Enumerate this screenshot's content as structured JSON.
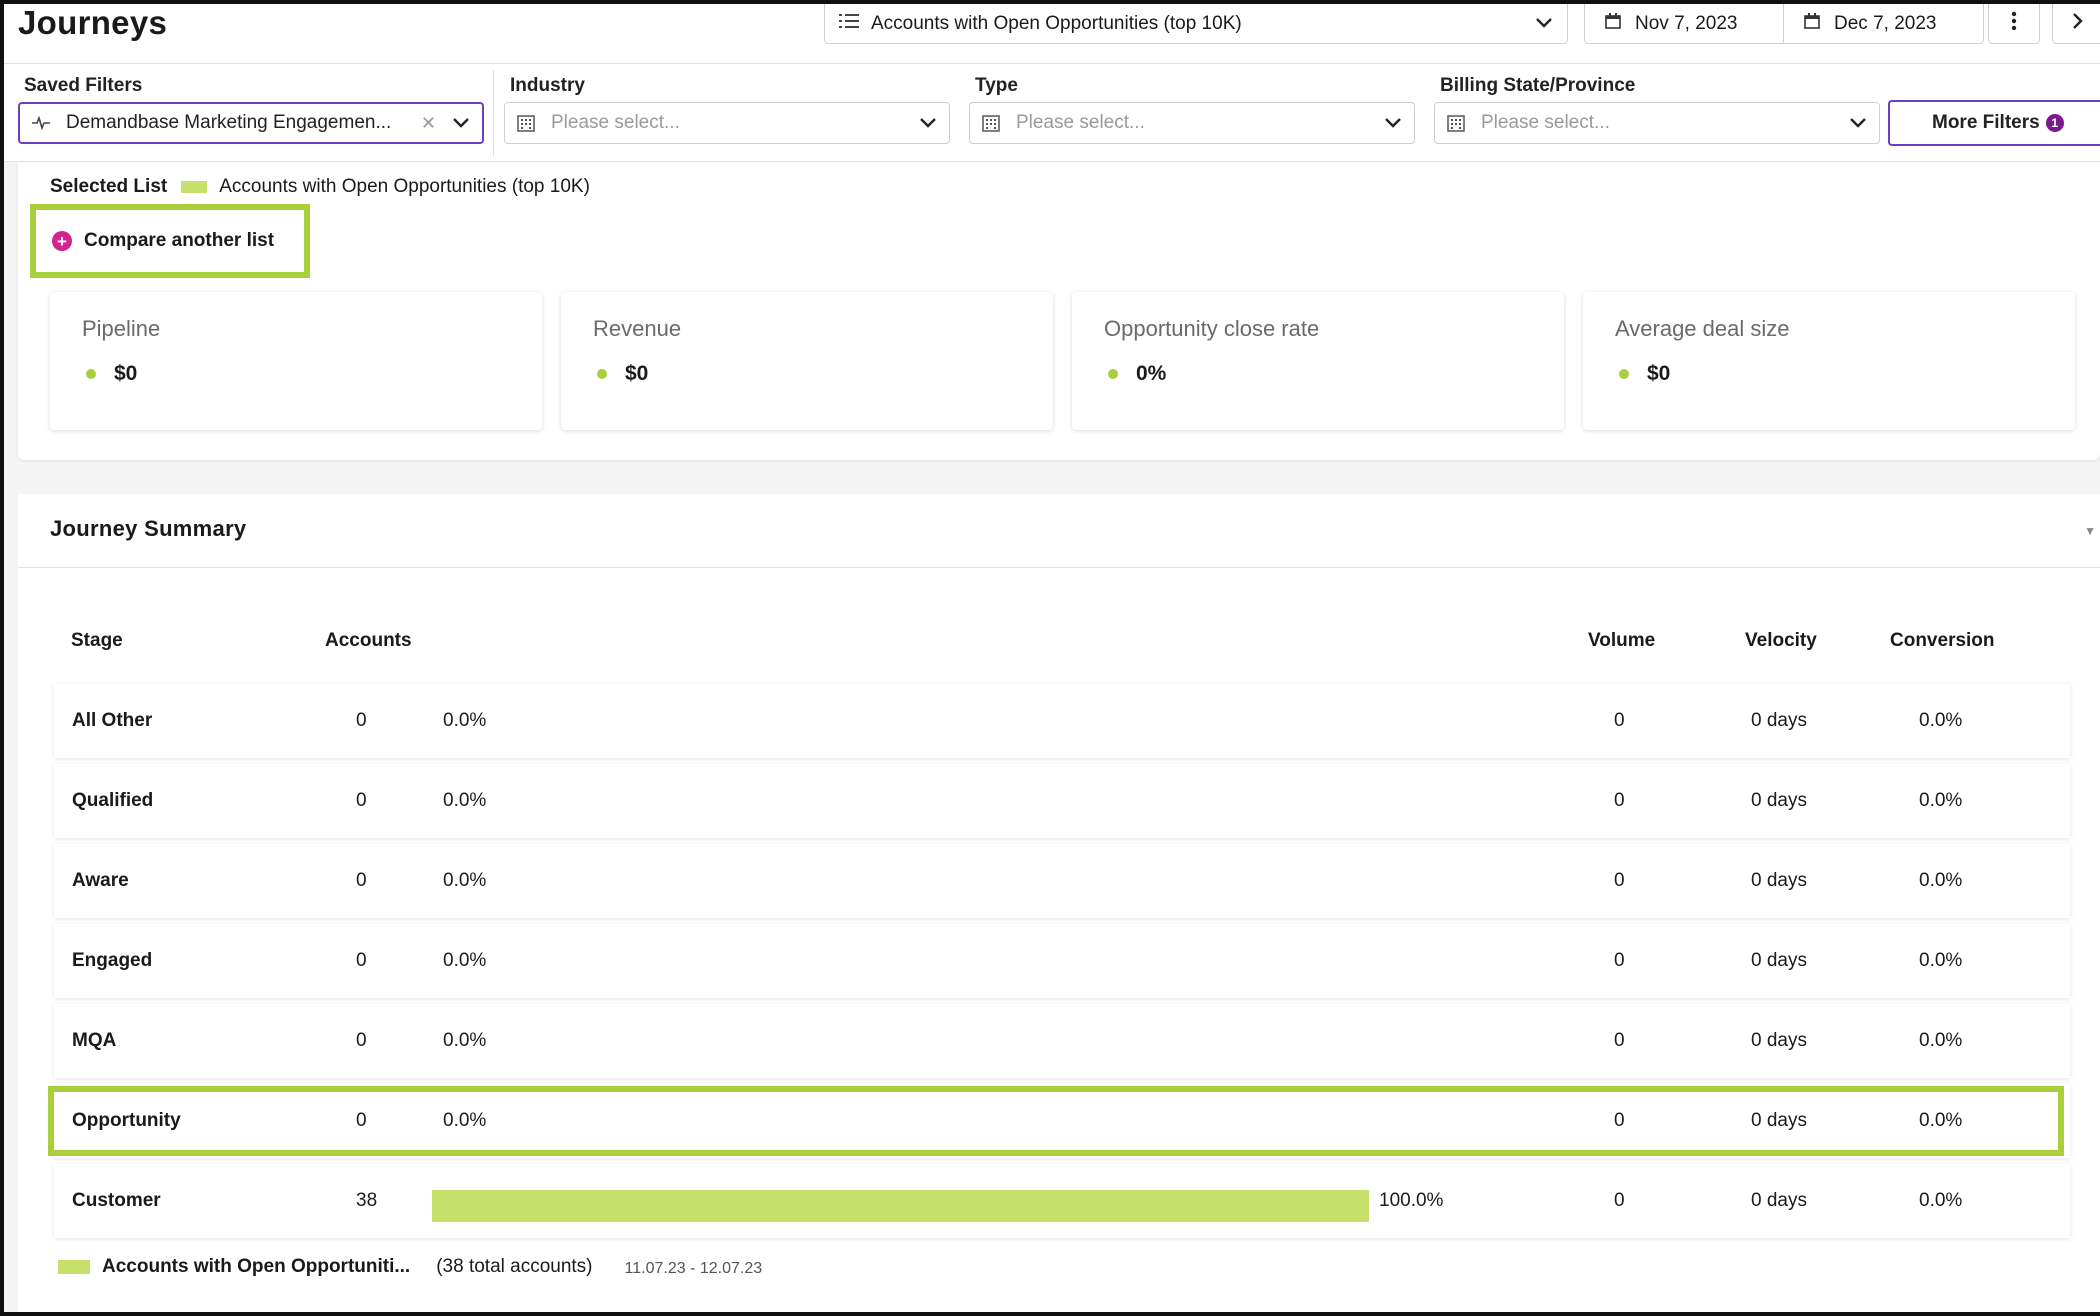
{
  "header": {
    "title": "Journeys",
    "list_select": "Accounts with Open Opportunities (top 10K)",
    "date_start": "Nov 7, 2023",
    "date_end": "Dec 7, 2023"
  },
  "filters": {
    "saved": {
      "label": "Saved Filters",
      "value": "Demandbase Marketing Engagemen..."
    },
    "industry": {
      "label": "Industry",
      "placeholder": "Please select..."
    },
    "type": {
      "label": "Type",
      "placeholder": "Please select..."
    },
    "billing": {
      "label": "Billing State/Province",
      "placeholder": "Please select..."
    },
    "more_filters": {
      "label": "More Filters",
      "count": "1"
    }
  },
  "selected_list": {
    "label": "Selected List",
    "name": "Accounts with Open Opportunities (top 10K)",
    "compare_label": "Compare another list"
  },
  "kpis": [
    {
      "title": "Pipeline",
      "value": "$0"
    },
    {
      "title": "Revenue",
      "value": "$0"
    },
    {
      "title": "Opportunity close rate",
      "value": "0%"
    },
    {
      "title": "Average deal size",
      "value": "$0"
    }
  ],
  "journey": {
    "title": "Journey Summary",
    "columns": {
      "stage": "Stage",
      "accounts": "Accounts",
      "volume": "Volume",
      "velocity": "Velocity",
      "conversion": "Conversion"
    },
    "rows": [
      {
        "stage": "All Other",
        "accounts": "0",
        "pct": "0.0%",
        "fraction": 0,
        "volume": "0",
        "velocity": "0 days",
        "conversion": "0.0%"
      },
      {
        "stage": "Qualified",
        "accounts": "0",
        "pct": "0.0%",
        "fraction": 0,
        "volume": "0",
        "velocity": "0 days",
        "conversion": "0.0%"
      },
      {
        "stage": "Aware",
        "accounts": "0",
        "pct": "0.0%",
        "fraction": 0,
        "volume": "0",
        "velocity": "0 days",
        "conversion": "0.0%"
      },
      {
        "stage": "Engaged",
        "accounts": "0",
        "pct": "0.0%",
        "fraction": 0,
        "volume": "0",
        "velocity": "0 days",
        "conversion": "0.0%"
      },
      {
        "stage": "MQA",
        "accounts": "0",
        "pct": "0.0%",
        "fraction": 0,
        "volume": "0",
        "velocity": "0 days",
        "conversion": "0.0%"
      },
      {
        "stage": "Opportunity",
        "accounts": "0",
        "pct": "0.0%",
        "fraction": 0,
        "volume": "0",
        "velocity": "0 days",
        "conversion": "0.0%"
      },
      {
        "stage": "Customer",
        "accounts": "38",
        "pct": "100.0%",
        "fraction": 1,
        "volume": "0",
        "velocity": "0 days",
        "conversion": "0.0%"
      }
    ],
    "legend": {
      "name": "Accounts with Open Opportuniti...",
      "total": "(38 total accounts)",
      "range": "11.07.23 - 12.07.23"
    }
  },
  "colors": {
    "accent_green": "#a9cf3a",
    "bar_green": "#c6e06a",
    "purple": "#6b3fbf",
    "magenta": "#d4238e"
  }
}
